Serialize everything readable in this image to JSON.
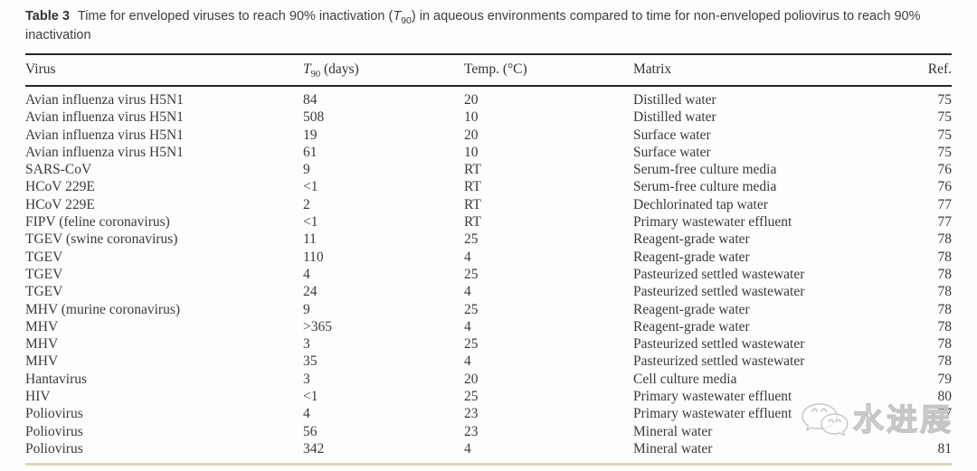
{
  "caption": {
    "label": "Table 3",
    "text_before_t90": "Time for enveloped viruses to reach 90% inactivation (",
    "t90_symbol": "T",
    "t90_subscript": "90",
    "text_after_t90": ") in aqueous environments compared to time for non-enveloped poliovirus to reach 90% inactivation"
  },
  "table": {
    "header": {
      "virus": "Virus",
      "t90_symbol": "T",
      "t90_subscript": "90",
      "t90_unit": " (days)",
      "temp": "Temp. (°C)",
      "matrix": "Matrix",
      "ref": "Ref."
    },
    "row_keys": [
      "virus",
      "t90",
      "temp",
      "matrix",
      "ref"
    ],
    "rows": [
      {
        "virus": "Avian influenza virus H5N1",
        "t90": "84",
        "temp": "20",
        "matrix": "Distilled water",
        "ref": "75"
      },
      {
        "virus": "Avian influenza virus H5N1",
        "t90": "508",
        "temp": "10",
        "matrix": "Distilled water",
        "ref": "75"
      },
      {
        "virus": "Avian influenza virus H5N1",
        "t90": "19",
        "temp": "20",
        "matrix": "Surface water",
        "ref": "75"
      },
      {
        "virus": "Avian influenza virus H5N1",
        "t90": "61",
        "temp": "10",
        "matrix": "Surface water",
        "ref": "75"
      },
      {
        "virus": "SARS-CoV",
        "t90": "9",
        "temp": "RT",
        "matrix": "Serum-free culture media",
        "ref": "76"
      },
      {
        "virus": "HCoV 229E",
        "t90": "<1",
        "temp": "RT",
        "matrix": "Serum-free culture media",
        "ref": "76"
      },
      {
        "virus": "HCoV 229E",
        "t90": "2",
        "temp": "RT",
        "matrix": "Dechlorinated tap water",
        "ref": "77"
      },
      {
        "virus": "FIPV (feline coronavirus)",
        "t90": "<1",
        "temp": "RT",
        "matrix": "Primary wastewater effluent",
        "ref": "77"
      },
      {
        "virus": "TGEV (swine coronavirus)",
        "t90": "11",
        "temp": "25",
        "matrix": "Reagent-grade water",
        "ref": "78"
      },
      {
        "virus": "TGEV",
        "t90": "110",
        "temp": "4",
        "matrix": "Reagent-grade water",
        "ref": "78"
      },
      {
        "virus": "TGEV",
        "t90": "4",
        "temp": "25",
        "matrix": "Pasteurized settled wastewater",
        "ref": "78"
      },
      {
        "virus": "TGEV",
        "t90": "24",
        "temp": "4",
        "matrix": "Pasteurized settled wastewater",
        "ref": "78"
      },
      {
        "virus": "MHV (murine coronavirus)",
        "t90": "9",
        "temp": "25",
        "matrix": "Reagent-grade water",
        "ref": "78"
      },
      {
        "virus": "MHV",
        "t90": ">365",
        "temp": "4",
        "matrix": "Reagent-grade water",
        "ref": "78"
      },
      {
        "virus": "MHV",
        "t90": "3",
        "temp": "25",
        "matrix": "Pasteurized settled wastewater",
        "ref": "78"
      },
      {
        "virus": "MHV",
        "t90": "35",
        "temp": "4",
        "matrix": "Pasteurized settled wastewater",
        "ref": "78"
      },
      {
        "virus": "Hantavirus",
        "t90": "3",
        "temp": "20",
        "matrix": "Cell culture media",
        "ref": "79"
      },
      {
        "virus": "HIV",
        "t90": "<1",
        "temp": "25",
        "matrix": "Primary wastewater effluent",
        "ref": "80"
      },
      {
        "virus": "Poliovirus",
        "t90": "4",
        "temp": "23",
        "matrix": "Primary wastewater effluent",
        "ref": "77"
      },
      {
        "virus": "Poliovirus",
        "t90": "56",
        "temp": "23",
        "matrix": "Mineral water",
        "ref": ""
      },
      {
        "virus": "Poliovirus",
        "t90": "342",
        "temp": "4",
        "matrix": "Mineral water",
        "ref": "81"
      }
    ]
  },
  "watermark": {
    "text": "水进展"
  },
  "colors": {
    "rule_dark": "#262626",
    "rule_tan": "#ddd4b8",
    "body_text": "#3a3a3a",
    "watermark_gray": "#c5c5c5",
    "background": "#fdfdfd"
  }
}
